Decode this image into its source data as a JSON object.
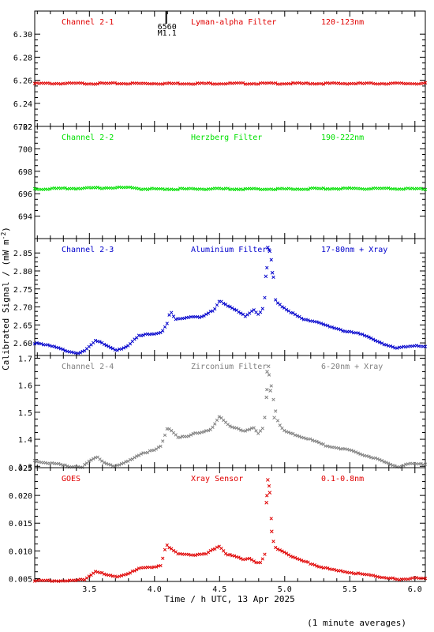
{
  "chart_data": {
    "type": "scatter",
    "xlabel": "Time / h UTC, 13 Apr 2025",
    "ylabel": "Calibrated Signal / (mW m",
    "ylabel_sup": "-2",
    "ylabel_close": ")",
    "footnote": "(1 minute averages)",
    "xlim": [
      3.08,
      6.08
    ],
    "xticks": [
      "3.5",
      "4.0",
      "4.5",
      "5.0",
      "5.5",
      "6.0"
    ],
    "flare_marker": {
      "x": 4.09,
      "id": "6560",
      "class": "M1.1"
    },
    "panels": [
      {
        "channel": "Channel 2-1",
        "filter": "Lyman-alpha Filter",
        "band": "120-123nm",
        "color": "#e00000",
        "ylim": [
          6.22,
          6.32
        ],
        "yticks": [
          "6.22",
          "6.24",
          "6.26",
          "6.28",
          "6.30"
        ],
        "curve": [
          [
            3.08,
            6.2575
          ],
          [
            6.08,
            6.2575
          ]
        ]
      },
      {
        "channel": "Channel 2-2",
        "filter": "Herzberg Filter",
        "band": "190-222nm",
        "color": "#00e000",
        "ylim": [
          692.0,
          702.0
        ],
        "yticks": [
          "694",
          "696",
          "698",
          "700",
          "702"
        ],
        "curve": [
          [
            3.08,
            696.45
          ],
          [
            3.4,
            696.5
          ],
          [
            3.85,
            696.6
          ],
          [
            3.9,
            696.45
          ],
          [
            5.0,
            696.45
          ],
          [
            5.5,
            696.5
          ],
          [
            6.08,
            696.45
          ]
        ]
      },
      {
        "channel": "Channel 2-3",
        "filter": "Aluminium Filter",
        "band": "17-80nm + Xray",
        "color": "#0000cc",
        "ylim": [
          2.565,
          2.89
        ],
        "yticks": [
          "2.60",
          "2.65",
          "2.70",
          "2.75",
          "2.80",
          "2.85"
        ],
        "curve": [
          [
            3.08,
            2.6
          ],
          [
            3.25,
            2.59
          ],
          [
            3.35,
            2.575
          ],
          [
            3.42,
            2.57
          ],
          [
            3.48,
            2.585
          ],
          [
            3.55,
            2.61
          ],
          [
            3.62,
            2.595
          ],
          [
            3.7,
            2.58
          ],
          [
            3.78,
            2.59
          ],
          [
            3.88,
            2.62
          ],
          [
            3.95,
            2.625
          ],
          [
            4.05,
            2.63
          ],
          [
            4.1,
            2.655
          ],
          [
            4.12,
            2.69
          ],
          [
            4.16,
            2.665
          ],
          [
            4.22,
            2.67
          ],
          [
            4.3,
            2.675
          ],
          [
            4.35,
            2.67
          ],
          [
            4.4,
            2.68
          ],
          [
            4.46,
            2.695
          ],
          [
            4.5,
            2.72
          ],
          [
            4.56,
            2.705
          ],
          [
            4.63,
            2.69
          ],
          [
            4.7,
            2.675
          ],
          [
            4.76,
            2.695
          ],
          [
            4.8,
            2.68
          ],
          [
            4.84,
            2.7
          ],
          [
            4.86,
            2.78
          ],
          [
            4.87,
            2.865
          ],
          [
            4.89,
            2.85
          ],
          [
            4.91,
            2.795
          ],
          [
            4.93,
            2.72
          ],
          [
            4.97,
            2.705
          ],
          [
            5.05,
            2.685
          ],
          [
            5.15,
            2.665
          ],
          [
            5.25,
            2.66
          ],
          [
            5.35,
            2.645
          ],
          [
            5.45,
            2.635
          ],
          [
            5.55,
            2.63
          ],
          [
            5.65,
            2.615
          ],
          [
            5.75,
            2.6
          ],
          [
            5.85,
            2.585
          ],
          [
            5.92,
            2.59
          ],
          [
            6.0,
            2.595
          ],
          [
            6.08,
            2.59
          ]
        ],
        "outliers": [
          [
            4.855,
            2.785
          ],
          [
            4.87,
            2.865
          ],
          [
            4.885,
            2.855
          ],
          [
            4.905,
            2.795
          ]
        ]
      },
      {
        "channel": "Channel 2-4",
        "filter": "Zirconium Filter",
        "band": "6-20nm + Xray",
        "color": "#808080",
        "ylim": [
          1.295,
          1.71
        ],
        "yticks": [
          "1.3",
          "1.4",
          "1.5",
          "1.6",
          "1.7"
        ],
        "curve": [
          [
            3.08,
            1.32
          ],
          [
            3.25,
            1.31
          ],
          [
            3.35,
            1.3
          ],
          [
            3.45,
            1.3
          ],
          [
            3.5,
            1.32
          ],
          [
            3.56,
            1.335
          ],
          [
            3.62,
            1.315
          ],
          [
            3.7,
            1.3
          ],
          [
            3.8,
            1.32
          ],
          [
            3.9,
            1.35
          ],
          [
            4.0,
            1.36
          ],
          [
            4.05,
            1.375
          ],
          [
            4.1,
            1.445
          ],
          [
            4.14,
            1.43
          ],
          [
            4.18,
            1.41
          ],
          [
            4.25,
            1.41
          ],
          [
            4.32,
            1.425
          ],
          [
            4.38,
            1.43
          ],
          [
            4.44,
            1.44
          ],
          [
            4.5,
            1.485
          ],
          [
            4.56,
            1.455
          ],
          [
            4.65,
            1.44
          ],
          [
            4.7,
            1.43
          ],
          [
            4.76,
            1.445
          ],
          [
            4.8,
            1.42
          ],
          [
            4.84,
            1.45
          ],
          [
            4.86,
            1.55
          ],
          [
            4.87,
            1.66
          ],
          [
            4.89,
            1.62
          ],
          [
            4.92,
            1.53
          ],
          [
            4.95,
            1.46
          ],
          [
            5.0,
            1.43
          ],
          [
            5.1,
            1.415
          ],
          [
            5.2,
            1.4
          ],
          [
            5.3,
            1.38
          ],
          [
            5.4,
            1.37
          ],
          [
            5.5,
            1.36
          ],
          [
            5.6,
            1.345
          ],
          [
            5.7,
            1.33
          ],
          [
            5.8,
            1.31
          ],
          [
            5.88,
            1.3
          ],
          [
            5.95,
            1.31
          ],
          [
            6.08,
            1.31
          ]
        ],
        "outliers": [
          [
            4.86,
            1.555
          ],
          [
            4.865,
            1.65
          ],
          [
            4.875,
            1.67
          ],
          [
            4.89,
            1.58
          ],
          [
            4.92,
            1.48
          ]
        ]
      },
      {
        "channel": "GOES",
        "filter": "Xray Sensor",
        "band": "0.1-0.8nm",
        "color": "#e00000",
        "ylim": [
          0.0045,
          0.025
        ],
        "yticks": [
          "0.005",
          "0.010",
          "0.015",
          "0.020",
          "0.025"
        ],
        "curve": [
          [
            3.08,
            0.0047
          ],
          [
            3.25,
            0.0047
          ],
          [
            3.4,
            0.0047
          ],
          [
            3.47,
            0.005
          ],
          [
            3.55,
            0.0065
          ],
          [
            3.62,
            0.0058
          ],
          [
            3.7,
            0.0054
          ],
          [
            3.8,
            0.006
          ],
          [
            3.9,
            0.007
          ],
          [
            4.0,
            0.0072
          ],
          [
            4.05,
            0.0075
          ],
          [
            4.09,
            0.0112
          ],
          [
            4.12,
            0.0105
          ],
          [
            4.18,
            0.0095
          ],
          [
            4.25,
            0.0095
          ],
          [
            4.32,
            0.0093
          ],
          [
            4.4,
            0.0095
          ],
          [
            4.46,
            0.0105
          ],
          [
            4.5,
            0.011
          ],
          [
            4.55,
            0.0095
          ],
          [
            4.62,
            0.009
          ],
          [
            4.68,
            0.0085
          ],
          [
            4.73,
            0.0088
          ],
          [
            4.78,
            0.008
          ],
          [
            4.82,
            0.008
          ],
          [
            4.85,
            0.0095
          ],
          [
            4.86,
            0.0185
          ],
          [
            4.87,
            0.0228
          ],
          [
            4.89,
            0.0205
          ],
          [
            4.9,
            0.0135
          ],
          [
            4.92,
            0.0108
          ],
          [
            5.0,
            0.0098
          ],
          [
            5.1,
            0.0085
          ],
          [
            5.2,
            0.0078
          ],
          [
            5.3,
            0.007
          ],
          [
            5.4,
            0.0065
          ],
          [
            5.5,
            0.0062
          ],
          [
            5.6,
            0.0058
          ],
          [
            5.7,
            0.0055
          ],
          [
            5.8,
            0.0052
          ],
          [
            5.88,
            0.0048
          ],
          [
            5.95,
            0.005
          ],
          [
            6.0,
            0.0053
          ],
          [
            6.08,
            0.005
          ]
        ],
        "outliers": [
          [
            4.86,
            0.0187
          ],
          [
            4.87,
            0.0228
          ],
          [
            4.885,
            0.0205
          ],
          [
            4.9,
            0.0135
          ]
        ]
      }
    ]
  }
}
